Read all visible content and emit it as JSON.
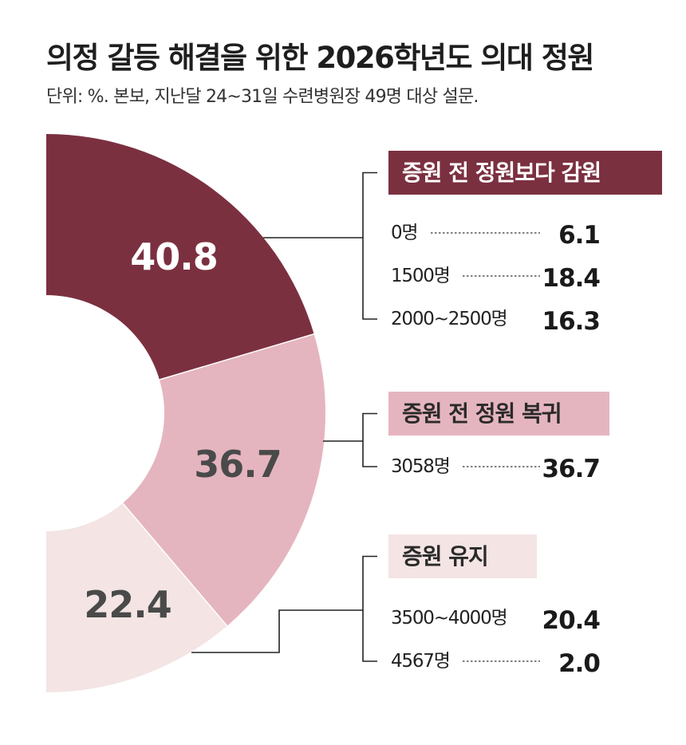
{
  "title": "의정 갈등 해결을 위한 2026학년도 의대 정원",
  "subtitle": "단위: %. 본보, 지난달 24~31일 수련병원장 49명 대상 설문.",
  "chart_data": {
    "type": "pie",
    "title": "의정 갈등 해결을 위한 2026학년도 의대 정원",
    "subtitle": "단위: %. 본보, 지난달 24~31일 수련병원장 49명 대상 설문.",
    "unit": "%",
    "slices": [
      {
        "label": "증원 전 정원보다 감원",
        "value": 40.8,
        "display": "40.8",
        "color": "#7b3040",
        "text_color": "#ffffff",
        "items": [
          {
            "label": "0명",
            "value": 6.1,
            "display": "6.1"
          },
          {
            "label": "1500명",
            "value": 18.4,
            "display": "18.4"
          },
          {
            "label": "2000~2500명",
            "value": 16.3,
            "display": "16.3"
          }
        ]
      },
      {
        "label": "증원 전 정원 복귀",
        "value": 36.7,
        "display": "36.7",
        "color": "#e5b5bf",
        "text_color": "#4a4a4a",
        "items": [
          {
            "label": "3058명",
            "value": 36.7,
            "display": "36.7"
          }
        ]
      },
      {
        "label": "증원 유지",
        "value": 22.4,
        "display": "22.4",
        "color": "#f4e4e4",
        "text_color": "#4a4a4a",
        "items": [
          {
            "label": "3500~4000명",
            "value": 20.4,
            "display": "20.4"
          },
          {
            "label": "4567명",
            "value": 2.0,
            "display": "2.0"
          }
        ]
      }
    ]
  }
}
